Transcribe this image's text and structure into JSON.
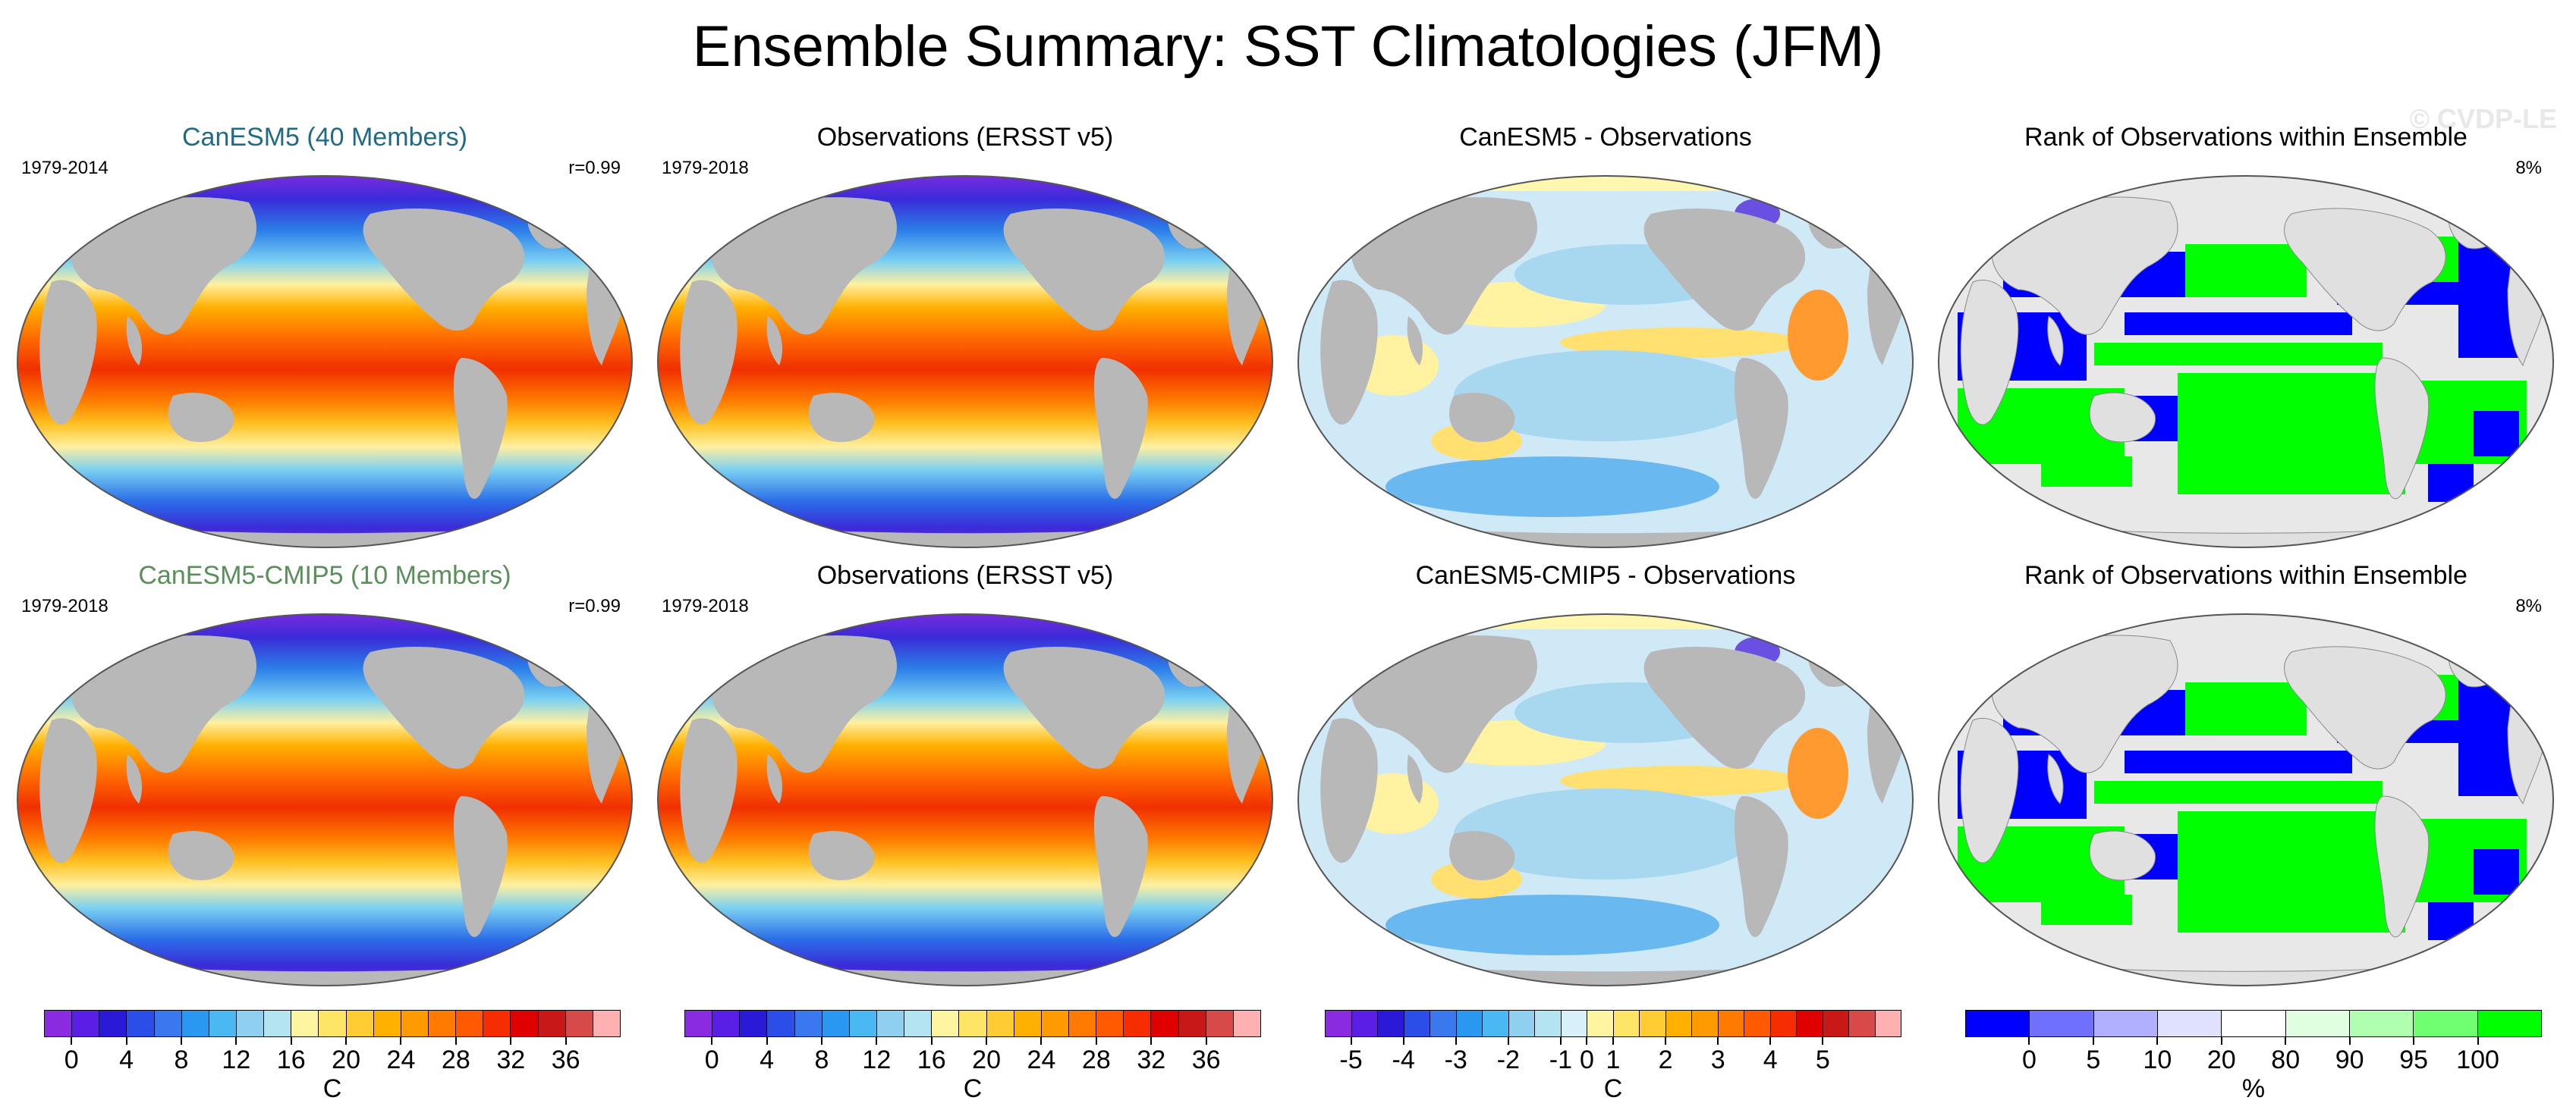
{
  "title": "Ensemble Summary: SST Climatologies (JFM)",
  "watermark": "© CVDP-LE",
  "rows": [
    {
      "panels": [
        {
          "title": "CanESM5 (40 Members)",
          "title_color": "#1f6b85",
          "left": "1979-2014",
          "right": "r=0.99",
          "kind": "sst"
        },
        {
          "title": "Observations (ERSST v5)",
          "title_color": "#000000",
          "left": "1979-2018",
          "right": "",
          "kind": "sst"
        },
        {
          "title": "CanESM5 - Observations",
          "title_color": "#000000",
          "left": "",
          "right": "",
          "kind": "diff"
        },
        {
          "title": "Rank of Observations within Ensemble",
          "title_color": "#000000",
          "left": "",
          "right": "8%",
          "kind": "rank"
        }
      ]
    },
    {
      "panels": [
        {
          "title": "CanESM5-CMIP5 (10 Members)",
          "title_color": "#5a8f5a",
          "left": "1979-2018",
          "right": "r=0.99",
          "kind": "sst"
        },
        {
          "title": "Observations (ERSST v5)",
          "title_color": "#000000",
          "left": "1979-2018",
          "right": "",
          "kind": "sst"
        },
        {
          "title": "CanESM5-CMIP5 - Observations",
          "title_color": "#000000",
          "left": "",
          "right": "",
          "kind": "diff"
        },
        {
          "title": "Rank of Observations within Ensemble",
          "title_color": "#000000",
          "left": "",
          "right": "8%",
          "kind": "rank"
        }
      ]
    }
  ],
  "colorbars": [
    {
      "unit": "C",
      "labels": [
        "0",
        "4",
        "8",
        "12",
        "16",
        "20",
        "24",
        "28",
        "32",
        "36"
      ],
      "label_swatch_index": [
        1,
        3,
        5,
        7,
        9,
        11,
        13,
        15,
        17,
        19
      ],
      "colors": [
        "#8a2be2",
        "#5a1ee6",
        "#2a1ad8",
        "#2b4ee8",
        "#3a78f0",
        "#2a98f0",
        "#4ab8f2",
        "#8fd0f0",
        "#b4e4f2",
        "#fff4a0",
        "#ffe566",
        "#ffcc33",
        "#ffb000",
        "#ff9a00",
        "#ff7a00",
        "#ff5a00",
        "#f52d00",
        "#e00000",
        "#c81818",
        "#d84a4a",
        "#ffb0b0"
      ]
    },
    {
      "unit": "C",
      "labels": [
        "0",
        "4",
        "8",
        "12",
        "16",
        "20",
        "24",
        "28",
        "32",
        "36"
      ],
      "label_swatch_index": [
        1,
        3,
        5,
        7,
        9,
        11,
        13,
        15,
        17,
        19
      ],
      "colors": [
        "#8a2be2",
        "#5a1ee6",
        "#2a1ad8",
        "#2b4ee8",
        "#3a78f0",
        "#2a98f0",
        "#4ab8f2",
        "#8fd0f0",
        "#b4e4f2",
        "#fff4a0",
        "#ffe566",
        "#ffcc33",
        "#ffb000",
        "#ff9a00",
        "#ff7a00",
        "#ff5a00",
        "#f52d00",
        "#e00000",
        "#c81818",
        "#d84a4a",
        "#ffb0b0"
      ]
    },
    {
      "unit": "C",
      "labels": [
        "-5",
        "-4",
        "-3",
        "-2",
        "-1",
        "0",
        "1",
        "2",
        "3",
        "4",
        "5"
      ],
      "label_swatch_index": [
        1,
        3,
        5,
        7,
        9,
        10,
        11,
        13,
        15,
        17,
        19
      ],
      "colors": [
        "#8a2be2",
        "#5a1ee6",
        "#2a1ad8",
        "#2b4ee8",
        "#3a78f0",
        "#2a98f0",
        "#4ab8f2",
        "#8fd0f0",
        "#b4e4f2",
        "#d8f0fa",
        "#fff4a0",
        "#ffe566",
        "#ffcc33",
        "#ffb000",
        "#ff9a00",
        "#ff7a00",
        "#ff5a00",
        "#f52d00",
        "#e00000",
        "#c81818",
        "#d84a4a",
        "#ffb0b0"
      ]
    },
    {
      "unit": "%",
      "labels": [
        "0",
        "5",
        "10",
        "20",
        "80",
        "90",
        "95",
        "100"
      ],
      "label_swatch_index": [
        1,
        2,
        3,
        4,
        5,
        6,
        7,
        8
      ],
      "colors": [
        "#0000ff",
        "#7070ff",
        "#b0b0ff",
        "#e0e0ff",
        "#ffffff",
        "#e0ffe0",
        "#b0ffb0",
        "#70ff70",
        "#00ff00"
      ]
    }
  ],
  "chart_data": [
    {
      "type": "heatmap",
      "title": "CanESM5 (40 Members)",
      "period": "1979-2014",
      "pattern_correlation": "r=0.99",
      "variable": "SST",
      "unit": "C",
      "color_levels": [
        0,
        4,
        8,
        12,
        16,
        20,
        24,
        28,
        32,
        36
      ]
    },
    {
      "type": "heatmap",
      "title": "Observations (ERSST v5)",
      "period": "1979-2018",
      "variable": "SST",
      "unit": "C",
      "color_levels": [
        0,
        4,
        8,
        12,
        16,
        20,
        24,
        28,
        32,
        36
      ]
    },
    {
      "type": "heatmap",
      "title": "CanESM5 - Observations",
      "variable": "SST difference",
      "unit": "C",
      "color_levels": [
        -5,
        -4,
        -3,
        -2,
        -1,
        0,
        1,
        2,
        3,
        4,
        5
      ]
    },
    {
      "type": "heatmap",
      "title": "Rank of Observations within Ensemble",
      "summary": "8%",
      "unit": "%",
      "color_levels": [
        0,
        5,
        10,
        20,
        80,
        90,
        95,
        100
      ]
    },
    {
      "type": "heatmap",
      "title": "CanESM5-CMIP5 (10 Members)",
      "period": "1979-2018",
      "pattern_correlation": "r=0.99",
      "variable": "SST",
      "unit": "C",
      "color_levels": [
        0,
        4,
        8,
        12,
        16,
        20,
        24,
        28,
        32,
        36
      ]
    },
    {
      "type": "heatmap",
      "title": "Observations (ERSST v5)",
      "period": "1979-2018",
      "variable": "SST",
      "unit": "C",
      "color_levels": [
        0,
        4,
        8,
        12,
        16,
        20,
        24,
        28,
        32,
        36
      ]
    },
    {
      "type": "heatmap",
      "title": "CanESM5-CMIP5 - Observations",
      "variable": "SST difference",
      "unit": "C",
      "color_levels": [
        -5,
        -4,
        -3,
        -2,
        -1,
        0,
        1,
        2,
        3,
        4,
        5
      ]
    },
    {
      "type": "heatmap",
      "title": "Rank of Observations within Ensemble",
      "summary": "8%",
      "unit": "%",
      "color_levels": [
        0,
        5,
        10,
        20,
        80,
        90,
        95,
        100
      ]
    }
  ]
}
